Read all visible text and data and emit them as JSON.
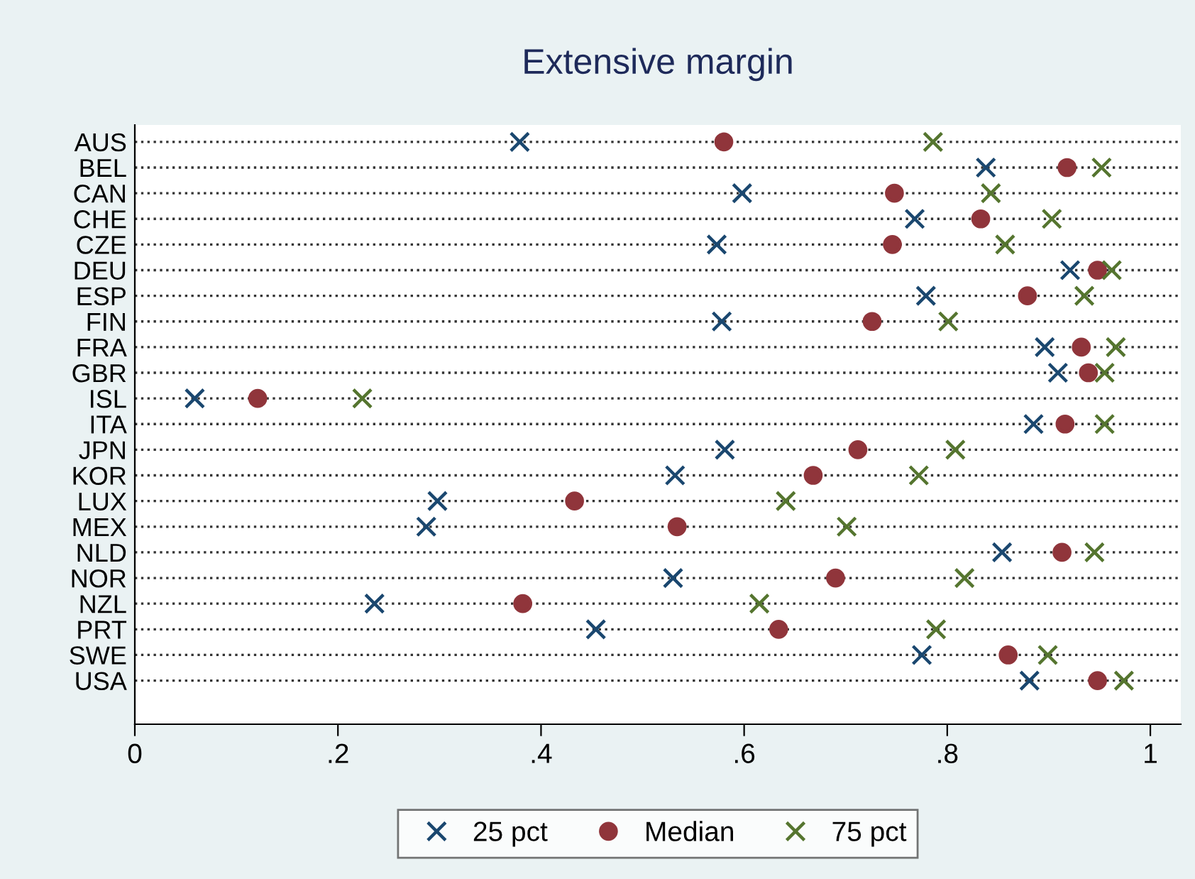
{
  "chart_data": {
    "type": "scatter",
    "title": "Extensive margin",
    "orientation": "horizontal",
    "categories": [
      "AUS",
      "BEL",
      "CAN",
      "CHE",
      "CZE",
      "DEU",
      "ESP",
      "FIN",
      "FRA",
      "GBR",
      "ISL",
      "ITA",
      "JPN",
      "KOR",
      "LUX",
      "MEX",
      "NLD",
      "NOR",
      "NZL",
      "PRT",
      "SWE",
      "USA"
    ],
    "series": [
      {
        "name": "25 pct",
        "color": "#1a476f",
        "marker": "cross",
        "values": [
          0.379,
          0.838,
          0.598,
          0.768,
          0.573,
          0.921,
          0.779,
          0.578,
          0.896,
          0.909,
          0.059,
          0.885,
          0.581,
          0.532,
          0.298,
          0.287,
          0.854,
          0.53,
          0.236,
          0.454,
          0.775,
          0.881
        ]
      },
      {
        "name": "Median",
        "color": "#90353b",
        "marker": "circle",
        "values": [
          0.58,
          0.918,
          0.748,
          0.833,
          0.746,
          0.948,
          0.879,
          0.726,
          0.932,
          0.939,
          0.121,
          0.916,
          0.712,
          0.668,
          0.433,
          0.534,
          0.913,
          0.69,
          0.382,
          0.634,
          0.86,
          0.948
        ]
      },
      {
        "name": "75 pct",
        "color": "#55752f",
        "marker": "cross",
        "values": [
          0.786,
          0.952,
          0.843,
          0.903,
          0.857,
          0.962,
          0.935,
          0.801,
          0.966,
          0.955,
          0.224,
          0.955,
          0.808,
          0.772,
          0.641,
          0.701,
          0.945,
          0.817,
          0.615,
          0.789,
          0.899,
          0.974
        ]
      }
    ],
    "xlim": [
      0,
      1.03
    ],
    "xticks": [
      0,
      {
        "value": 0.2,
        "label": ".2"
      },
      {
        "value": 0.4,
        "label": ".4"
      },
      {
        "value": 0.6,
        "label": ".6"
      },
      {
        "value": 0.8,
        "label": ".8"
      },
      1
    ],
    "grid": "y",
    "line_style": "dotted",
    "legend": "bottom"
  }
}
